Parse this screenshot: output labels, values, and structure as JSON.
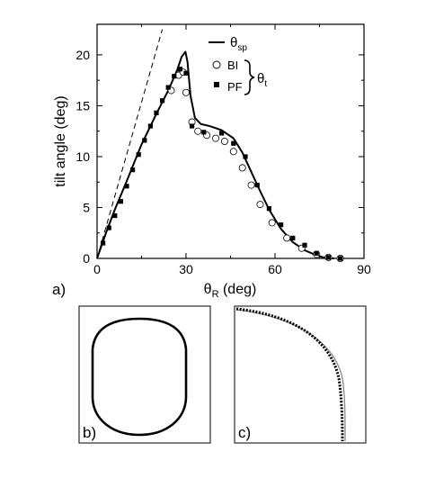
{
  "chart_data": [
    {
      "panel_label": "a)",
      "type": "line",
      "xlabel": "θ_R (deg)",
      "ylabel": "tilt angle (deg)",
      "xlim": [
        0,
        90
      ],
      "ylim": [
        0,
        23
      ],
      "x_ticks": [
        0,
        30,
        60,
        90
      ],
      "y_ticks": [
        0,
        5,
        10,
        15,
        20
      ],
      "legend": {
        "placement": "top-right",
        "entries": [
          "θ_sp",
          "BI",
          "PF"
        ],
        "group_label": "θ_t"
      },
      "series": [
        {
          "name": "θ_sp",
          "style": "solid-line",
          "x": [
            0,
            3,
            6,
            10,
            15,
            20,
            24,
            27,
            28.5,
            29.8,
            30.5,
            31.5,
            33,
            35,
            38,
            42,
            46,
            49,
            52,
            55,
            58,
            62,
            66,
            70,
            74,
            77,
            80
          ],
          "y": [
            0,
            2.5,
            4.8,
            7.6,
            11.2,
            14.2,
            16.5,
            18.5,
            19.8,
            20.3,
            19.3,
            16.0,
            13.8,
            13.2,
            13.0,
            12.6,
            11.8,
            10.4,
            8.5,
            6.6,
            4.8,
            2.9,
            1.6,
            0.8,
            0.3,
            0.05,
            0
          ]
        },
        {
          "name": "BI",
          "style": "open-circle",
          "x": [
            25,
            27.5,
            29,
            30,
            32,
            34,
            37,
            40,
            43,
            46,
            49,
            52,
            55,
            59,
            64,
            69,
            74,
            78,
            82
          ],
          "y": [
            16.5,
            18.0,
            18.3,
            16.3,
            13.4,
            12.5,
            12.1,
            11.8,
            11.5,
            10.5,
            8.9,
            7.2,
            5.3,
            3.5,
            2.0,
            1.0,
            0.4,
            0.1,
            0
          ]
        },
        {
          "name": "PF",
          "style": "filled-square",
          "x": [
            2,
            4,
            6,
            8,
            10,
            12,
            14,
            16,
            18,
            20,
            22,
            24,
            26,
            28,
            30,
            32,
            36,
            42,
            46,
            50,
            54,
            58,
            62,
            66,
            70,
            74,
            78,
            82
          ],
          "y": [
            1.5,
            3.0,
            4.2,
            5.6,
            7.1,
            8.7,
            10.2,
            11.6,
            13.0,
            14.3,
            15.5,
            16.8,
            17.9,
            18.6,
            18.2,
            13.0,
            12.4,
            12.3,
            11.3,
            10.0,
            7.2,
            4.9,
            3.3,
            2.0,
            1.3,
            0.5,
            0.1,
            0
          ]
        },
        {
          "name": "",
          "style": "dashed-line",
          "x": [
            0,
            22
          ],
          "y": [
            0,
            22.5
          ]
        }
      ]
    },
    {
      "panel_label": "b)",
      "type": "diagram",
      "shape": "rounded-rectangle-outline"
    },
    {
      "panel_label": "c)",
      "type": "diagram",
      "shape": "quarter-curve"
    }
  ],
  "colors": {
    "ink": "#000000",
    "marker_fill_open": "#ffffff",
    "grey_curve": "#8a8a8a",
    "background": "#ffffff"
  }
}
